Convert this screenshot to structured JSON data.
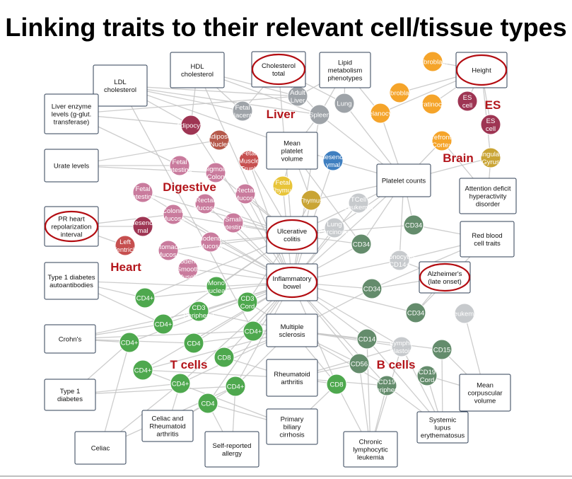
{
  "title": "Linking traits to their relevant cell/tissue types",
  "colors": {
    "edge": "#c4c4c4",
    "box_border": "#2f3f56",
    "highlight": "#b30d12",
    "group_label": "#b3151b",
    "green": "#4ea84e",
    "dark_green": "#648c6c",
    "gray": "#9ea3a8",
    "light_gray": "#c7cacd",
    "orange": "#f5a42a",
    "crimson": "#9e3553",
    "pink": "#c97b9d",
    "brown": "#b5584a",
    "rust": "#c64f4f",
    "yellow": "#e8c438",
    "gold": "#c9a434",
    "blue": "#3f7fc0"
  },
  "group_labels": [
    "Liver",
    "Digestive",
    "Heart",
    "T cells",
    "B cells",
    "ES",
    "Brain"
  ],
  "traits": [
    {
      "id": "ldl",
      "lines": [
        "LDL",
        "cholesterol"
      ],
      "circled": false
    },
    {
      "id": "hdl",
      "lines": [
        "HDL",
        "cholesterol"
      ],
      "circled": false
    },
    {
      "id": "chol",
      "lines": [
        "Cholesterol",
        "total"
      ],
      "circled": true
    },
    {
      "id": "lipid",
      "lines": [
        "Lipid",
        "metabolism",
        "phenotypes"
      ],
      "circled": false
    },
    {
      "id": "height",
      "lines": [
        "Height"
      ],
      "circled": true
    },
    {
      "id": "liverenz",
      "lines": [
        "Liver enzyme",
        "levels (g-glut.",
        "transferase)"
      ],
      "circled": false
    },
    {
      "id": "urate",
      "lines": [
        "Urate levels"
      ],
      "circled": false
    },
    {
      "id": "mpv",
      "lines": [
        "Mean",
        "platelet",
        "volume"
      ],
      "circled": false
    },
    {
      "id": "plt",
      "lines": [
        "Platelet counts"
      ],
      "circled": false
    },
    {
      "id": "adhd",
      "lines": [
        "Attention deficit",
        "hyperactivity",
        "disorder"
      ],
      "circled": false
    },
    {
      "id": "pr",
      "lines": [
        "PR heart",
        "repolarization",
        "interval"
      ],
      "circled": true
    },
    {
      "id": "uc",
      "lines": [
        "Ulcerative",
        "colitis"
      ],
      "circled": true
    },
    {
      "id": "rbc",
      "lines": [
        "Red blood",
        "cell traits"
      ],
      "circled": false
    },
    {
      "id": "t1dab",
      "lines": [
        "Type 1 diabetes",
        "autoantibodies"
      ],
      "circled": false
    },
    {
      "id": "ibd",
      "lines": [
        "Inflammatory",
        "bowel"
      ],
      "circled": true
    },
    {
      "id": "alz",
      "lines": [
        "Alzheimer's",
        "(late onset)"
      ],
      "circled": true
    },
    {
      "id": "crohn",
      "lines": [
        "Crohn's"
      ],
      "circled": false
    },
    {
      "id": "ms",
      "lines": [
        "Multiple",
        "sclerosis"
      ],
      "circled": false
    },
    {
      "id": "ra",
      "lines": [
        "Rheumatoid",
        "arthritis"
      ],
      "circled": false
    },
    {
      "id": "mcv",
      "lines": [
        "Mean",
        "corpuscular",
        "volume"
      ],
      "circled": false
    },
    {
      "id": "t1d",
      "lines": [
        "Type 1",
        "diabetes"
      ],
      "circled": false
    },
    {
      "id": "celra",
      "lines": [
        "Celiac and",
        "Rheumatoid",
        "arthritis"
      ],
      "circled": false
    },
    {
      "id": "sle",
      "lines": [
        "Systemic",
        "lupus",
        "erythematosus"
      ],
      "circled": false
    },
    {
      "id": "celiac",
      "lines": [
        "Celiac"
      ],
      "circled": false
    },
    {
      "id": "allergy",
      "lines": [
        "Self-reported",
        "allergy"
      ],
      "circled": false
    },
    {
      "id": "pbc",
      "lines": [
        "Primary",
        "biliary",
        "cirrhosis"
      ],
      "circled": false
    },
    {
      "id": "cll",
      "lines": [
        "Chronic",
        "lymphocytic",
        "leukemia"
      ],
      "circled": false
    }
  ],
  "cells": [
    {
      "id": "adultliver",
      "lines": [
        "Adult",
        "Liver"
      ],
      "color": "gray"
    },
    {
      "id": "lung1",
      "lines": [
        "Lung"
      ],
      "color": "gray"
    },
    {
      "id": "fetplac",
      "lines": [
        "Fetal",
        "Placenta"
      ],
      "color": "gray"
    },
    {
      "id": "spleen",
      "lines": [
        "Spleen"
      ],
      "color": "gray"
    },
    {
      "id": "fibro1",
      "lines": [
        "Fibroblast"
      ],
      "color": "orange"
    },
    {
      "id": "fibro2",
      "lines": [
        "Fibroblast"
      ],
      "color": "orange"
    },
    {
      "id": "melano",
      "lines": [
        "Melanocyte"
      ],
      "color": "orange"
    },
    {
      "id": "kerat",
      "lines": [
        "Keratinocyte"
      ],
      "color": "orange"
    },
    {
      "id": "pfc",
      "lines": [
        "Prefrontal",
        "Cortex"
      ],
      "color": "orange"
    },
    {
      "id": "escell1",
      "lines": [
        "ES",
        "cell"
      ],
      "color": "crimson"
    },
    {
      "id": "escell2",
      "lines": [
        "ES",
        "cell"
      ],
      "color": "crimson"
    },
    {
      "id": "cingul",
      "lines": [
        "Cingulate",
        "Gyrus"
      ],
      "color": "gold"
    },
    {
      "id": "adipo",
      "lines": [
        "Adipocyte"
      ],
      "color": "crimson"
    },
    {
      "id": "adinuc",
      "lines": [
        "Adipose",
        "Nuclei"
      ],
      "color": "brown"
    },
    {
      "id": "fetint1",
      "lines": [
        "Fetal",
        "Intestine"
      ],
      "color": "pink"
    },
    {
      "id": "sigcol",
      "lines": [
        "Sigmoid",
        "Colon"
      ],
      "color": "pink"
    },
    {
      "id": "fetmus",
      "lines": [
        "Fetal",
        "Muscle",
        "Trunk"
      ],
      "color": "rust"
    },
    {
      "id": "mesen1",
      "lines": [
        "Mesench",
        "ymal"
      ],
      "color": "blue"
    },
    {
      "id": "fetint2",
      "lines": [
        "Fetal",
        "Intestine"
      ],
      "color": "pink"
    },
    {
      "id": "rectmuc1",
      "lines": [
        "Rectal",
        "Mucosa"
      ],
      "color": "pink"
    },
    {
      "id": "rectmuc2",
      "lines": [
        "Rectal",
        "Mucosa"
      ],
      "color": "pink"
    },
    {
      "id": "fetthy",
      "lines": [
        "Fetal",
        "Thymus"
      ],
      "color": "yellow"
    },
    {
      "id": "thymus",
      "lines": [
        "Thymus"
      ],
      "color": "gold"
    },
    {
      "id": "tcleuk",
      "lines": [
        "TCell",
        "Leukemia"
      ],
      "color": "light_gray"
    },
    {
      "id": "colmuc",
      "lines": [
        "Colonic",
        "Mucosa"
      ],
      "color": "pink"
    },
    {
      "id": "smint",
      "lines": [
        "Small",
        "Intestine"
      ],
      "color": "pink"
    },
    {
      "id": "lungcar",
      "lines": [
        "Lung",
        "Carcinoma"
      ],
      "color": "light_gray"
    },
    {
      "id": "mesen2",
      "lines": [
        "Mesench",
        "mal"
      ],
      "color": "crimson"
    },
    {
      "id": "duomuc",
      "lines": [
        "Duodenum",
        "Mucosa"
      ],
      "color": "pink"
    },
    {
      "id": "cd34a",
      "lines": [
        "CD34"
      ],
      "color": "dark_green"
    },
    {
      "id": "leftvent",
      "lines": [
        "Left",
        "Ventricle"
      ],
      "color": "rust"
    },
    {
      "id": "stomuc",
      "lines": [
        "Stomach",
        "Mucosa"
      ],
      "color": "pink"
    },
    {
      "id": "cd34b",
      "lines": [
        "CD34"
      ],
      "color": "dark_green"
    },
    {
      "id": "mono14",
      "lines": [
        "Monocytes",
        "CD14+"
      ],
      "color": "light_gray"
    },
    {
      "id": "duosm",
      "lines": [
        "Duodenum",
        "Smooth",
        "Muscle"
      ],
      "color": "pink"
    },
    {
      "id": "mononuc",
      "lines": [
        "Mono",
        "nuclear"
      ],
      "color": "green"
    },
    {
      "id": "cd4a",
      "lines": [
        "CD4+"
      ],
      "color": "green"
    },
    {
      "id": "cd3cord",
      "lines": [
        "CD3",
        "Cord"
      ],
      "color": "green"
    },
    {
      "id": "cd34c",
      "lines": [
        "CD34"
      ],
      "color": "dark_green"
    },
    {
      "id": "cd3per",
      "lines": [
        "CD3",
        "Peripheral"
      ],
      "color": "green"
    },
    {
      "id": "cd34d",
      "lines": [
        "CD34"
      ],
      "color": "dark_green"
    },
    {
      "id": "leuk",
      "lines": [
        "Leukemia"
      ],
      "color": "light_gray"
    },
    {
      "id": "cd4b",
      "lines": [
        "CD4+"
      ],
      "color": "green"
    },
    {
      "id": "cd4c",
      "lines": [
        "CD4+"
      ],
      "color": "green"
    },
    {
      "id": "cd14",
      "lines": [
        "CD14"
      ],
      "color": "dark_green"
    },
    {
      "id": "cd4d",
      "lines": [
        "CD4+"
      ],
      "color": "green"
    },
    {
      "id": "cd4e",
      "lines": [
        "CD4"
      ],
      "color": "green"
    },
    {
      "id": "lymbla",
      "lines": [
        "Lympho",
        "blastoid"
      ],
      "color": "light_gray"
    },
    {
      "id": "cd15",
      "lines": [
        "CD15"
      ],
      "color": "dark_green"
    },
    {
      "id": "cd8a",
      "lines": [
        "CD8"
      ],
      "color": "green"
    },
    {
      "id": "cd56",
      "lines": [
        "CD56"
      ],
      "color": "dark_green"
    },
    {
      "id": "cd4f",
      "lines": [
        "CD4+"
      ],
      "color": "green"
    },
    {
      "id": "cd19cord",
      "lines": [
        "CD19",
        "Cord"
      ],
      "color": "dark_green"
    },
    {
      "id": "cd4g",
      "lines": [
        "CD4+"
      ],
      "color": "green"
    },
    {
      "id": "cd4h",
      "lines": [
        "CD4+"
      ],
      "color": "green"
    },
    {
      "id": "cd8b",
      "lines": [
        "CD8"
      ],
      "color": "green"
    },
    {
      "id": "cd19per",
      "lines": [
        "CD19",
        "Peripheral"
      ],
      "color": "dark_green"
    },
    {
      "id": "cd4i",
      "lines": [
        "CD4"
      ],
      "color": "green"
    }
  ],
  "edges": [
    [
      "ldl",
      "adultliver"
    ],
    [
      "ldl",
      "fetplac"
    ],
    [
      "ldl",
      "spleen"
    ],
    [
      "ldl",
      "cd4d"
    ],
    [
      "ldl",
      "mesen1"
    ],
    [
      "ldl",
      "adipo"
    ],
    [
      "hdl",
      "adultliver"
    ],
    [
      "hdl",
      "fetplac"
    ],
    [
      "hdl",
      "adipo"
    ],
    [
      "hdl",
      "spleen"
    ],
    [
      "hdl",
      "ibd"
    ],
    [
      "chol",
      "adultliver"
    ],
    [
      "chol",
      "lung1"
    ],
    [
      "chol",
      "fetplac"
    ],
    [
      "chol",
      "spleen"
    ],
    [
      "chol",
      "uc"
    ],
    [
      "lipid",
      "adultliver"
    ],
    [
      "lipid",
      "lung1"
    ],
    [
      "lipid",
      "spleen"
    ],
    [
      "lipid",
      "melano"
    ],
    [
      "height",
      "fibro1"
    ],
    [
      "height",
      "fibro2"
    ],
    [
      "height",
      "kerat"
    ],
    [
      "height",
      "escell1"
    ],
    [
      "height",
      "escell2"
    ],
    [
      "height",
      "cingul"
    ],
    [
      "height",
      "melano"
    ],
    [
      "liverenz",
      "fetint1"
    ],
    [
      "liverenz",
      "adultliver"
    ],
    [
      "liverenz",
      "adipo"
    ],
    [
      "urate",
      "sigcol"
    ],
    [
      "urate",
      "fetint1"
    ],
    [
      "urate",
      "adinuc"
    ],
    [
      "mpv",
      "thymus"
    ],
    [
      "mpv",
      "fetthy"
    ],
    [
      "mpv",
      "cd34b"
    ],
    [
      "mpv",
      "spleen"
    ],
    [
      "plt",
      "mesen1"
    ],
    [
      "plt",
      "tcleuk"
    ],
    [
      "plt",
      "cd34a"
    ],
    [
      "plt",
      "cd34b"
    ],
    [
      "plt",
      "lungcar"
    ],
    [
      "plt",
      "thymus"
    ],
    [
      "plt",
      "cingul"
    ],
    [
      "plt",
      "pfc"
    ],
    [
      "plt",
      "melano"
    ],
    [
      "plt",
      "spleen"
    ],
    [
      "plt",
      "lung1"
    ],
    [
      "plt",
      "ibd"
    ],
    [
      "plt",
      "mono14"
    ],
    [
      "adhd",
      "cingul"
    ],
    [
      "adhd",
      "pfc"
    ],
    [
      "pr",
      "leftvent"
    ],
    [
      "pr",
      "mesen2"
    ],
    [
      "pr",
      "colmuc"
    ],
    [
      "uc",
      "rectmuc1"
    ],
    [
      "uc",
      "rectmuc2"
    ],
    [
      "uc",
      "smint"
    ],
    [
      "uc",
      "sigcol"
    ],
    [
      "uc",
      "fetmus"
    ],
    [
      "uc",
      "thymus"
    ],
    [
      "uc",
      "lungcar"
    ],
    [
      "uc",
      "cd34b"
    ],
    [
      "uc",
      "cd4a"
    ],
    [
      "uc",
      "cd3cord"
    ],
    [
      "uc",
      "mononuc"
    ],
    [
      "uc",
      "fetint2"
    ],
    [
      "uc",
      "duomuc"
    ],
    [
      "uc",
      "stomuc"
    ],
    [
      "uc",
      "colmuc"
    ],
    [
      "uc",
      "tcleuk"
    ],
    [
      "uc",
      "cd34a"
    ],
    [
      "uc",
      "cd4b"
    ],
    [
      "rbc",
      "cd34a"
    ],
    [
      "rbc",
      "cd34c"
    ],
    [
      "rbc",
      "mono14"
    ],
    [
      "rbc",
      "cd34d"
    ],
    [
      "t1dab",
      "cd4a"
    ],
    [
      "t1dab",
      "cd4b"
    ],
    [
      "t1dab",
      "mononuc"
    ],
    [
      "ibd",
      "rectmuc1"
    ],
    [
      "ibd",
      "rectmuc2"
    ],
    [
      "ibd",
      "smint"
    ],
    [
      "ibd",
      "colmuc"
    ],
    [
      "ibd",
      "duomuc"
    ],
    [
      "ibd",
      "fetint2"
    ],
    [
      "ibd",
      "stomuc"
    ],
    [
      "ibd",
      "duosm"
    ],
    [
      "ibd",
      "mononuc"
    ],
    [
      "ibd",
      "cd3cord"
    ],
    [
      "ibd",
      "cd3per"
    ],
    [
      "ibd",
      "cd4a"
    ],
    [
      "ibd",
      "cd4b"
    ],
    [
      "ibd",
      "cd4c"
    ],
    [
      "ibd",
      "cd4d"
    ],
    [
      "ibd",
      "cd4e"
    ],
    [
      "ibd",
      "cd8a"
    ],
    [
      "ibd",
      "cd4f"
    ],
    [
      "ibd",
      "cd4g"
    ],
    [
      "ibd",
      "cd4h"
    ],
    [
      "ibd",
      "cd4i"
    ],
    [
      "ibd",
      "cd34b"
    ],
    [
      "ibd",
      "cd34c"
    ],
    [
      "ibd",
      "cd34d"
    ],
    [
      "ibd",
      "cd14"
    ],
    [
      "ibd",
      "cd56"
    ],
    [
      "ibd",
      "lymbla"
    ],
    [
      "ibd",
      "cd8b"
    ],
    [
      "ibd",
      "cd19per"
    ],
    [
      "ibd",
      "mono14"
    ],
    [
      "ibd",
      "lungcar"
    ],
    [
      "ibd",
      "thymus"
    ],
    [
      "ibd",
      "fetthy"
    ],
    [
      "ibd",
      "tcleuk"
    ],
    [
      "ibd",
      "spleen"
    ],
    [
      "ibd",
      "adipo"
    ],
    [
      "ibd",
      "fetmus"
    ],
    [
      "ibd",
      "mesen1"
    ],
    [
      "alz",
      "cd34c"
    ],
    [
      "alz",
      "mono14"
    ],
    [
      "alz",
      "cd34d"
    ],
    [
      "crohn",
      "cd4c"
    ],
    [
      "crohn",
      "cd4d"
    ],
    [
      "crohn",
      "cd4b"
    ],
    [
      "crohn",
      "cd4e"
    ],
    [
      "crohn",
      "cd3per"
    ],
    [
      "ms",
      "cd4d"
    ],
    [
      "ms",
      "cd4e"
    ],
    [
      "ms",
      "cd8a"
    ],
    [
      "ms",
      "cd4f"
    ],
    [
      "ms",
      "cd14"
    ],
    [
      "ms",
      "cd56"
    ],
    [
      "ms",
      "lymbla"
    ],
    [
      "ms",
      "cd19per"
    ],
    [
      "ms",
      "cd15"
    ],
    [
      "ms",
      "cd34c"
    ],
    [
      "ms",
      "cd3cord"
    ],
    [
      "ms",
      "cd3per"
    ],
    [
      "ms",
      "cd4g"
    ],
    [
      "ms",
      "cd4h"
    ],
    [
      "ms",
      "cd8b"
    ],
    [
      "ra",
      "cd4f"
    ],
    [
      "ra",
      "cd8a"
    ],
    [
      "ra",
      "cd8b"
    ],
    [
      "ra",
      "cd56"
    ],
    [
      "ra",
      "cd19per"
    ],
    [
      "ra",
      "lymbla"
    ],
    [
      "mcv",
      "cd19cord"
    ],
    [
      "mcv",
      "leuk"
    ],
    [
      "mcv",
      "cd15"
    ],
    [
      "t1d",
      "cd4g"
    ],
    [
      "t1d",
      "cd4h"
    ],
    [
      "t1d",
      "cd4c"
    ],
    [
      "celra",
      "cd4h"
    ],
    [
      "celra",
      "cd4i"
    ],
    [
      "celra",
      "cd4g"
    ],
    [
      "sle",
      "cd19cord"
    ],
    [
      "sle",
      "cd19per"
    ],
    [
      "sle",
      "lymbla"
    ],
    [
      "sle",
      "cd15"
    ],
    [
      "sle",
      "cd14"
    ],
    [
      "celiac",
      "cd4g"
    ],
    [
      "celiac",
      "cd4h"
    ],
    [
      "celiac",
      "cd4c"
    ],
    [
      "allergy",
      "cd4i"
    ],
    [
      "allergy",
      "cd4h"
    ],
    [
      "pbc",
      "cd4i"
    ],
    [
      "pbc",
      "cd8b"
    ],
    [
      "pbc",
      "cd4f"
    ],
    [
      "cll",
      "cd19per"
    ],
    [
      "cll",
      "lymbla"
    ],
    [
      "cll",
      "cd56"
    ],
    [
      "cll",
      "cd14"
    ],
    [
      "cll",
      "cd8b"
    ]
  ]
}
